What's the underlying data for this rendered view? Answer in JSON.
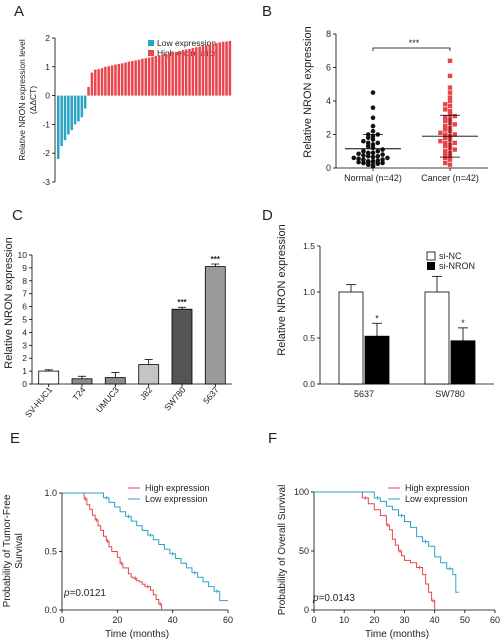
{
  "chart_data": [
    {
      "panel": "A",
      "type": "bar",
      "ylabel_lines": [
        "Relative NRON expression level",
        "(ΔΔCT)"
      ],
      "ylim": [
        -3,
        2
      ],
      "yticks": [
        -3,
        -2,
        -1,
        0,
        1,
        2
      ],
      "legend": [
        {
          "name": "Low expression",
          "color": "#2ba3c4"
        },
        {
          "name": "High expression",
          "color": "#e8464c"
        }
      ],
      "low_values": [
        -2.2,
        -1.75,
        -1.55,
        -1.35,
        -1.2,
        -1.0,
        -0.9,
        -0.75,
        -0.45
      ],
      "high_values": [
        0.3,
        0.8,
        0.9,
        0.92,
        0.95,
        1.0,
        1.02,
        1.05,
        1.08,
        1.1,
        1.12,
        1.15,
        1.18,
        1.2,
        1.22,
        1.25,
        1.28,
        1.3,
        1.32,
        1.35,
        1.38,
        1.4,
        1.42,
        1.45,
        1.48,
        1.5,
        1.52,
        1.55,
        1.58,
        1.6,
        1.62,
        1.65,
        1.68,
        1.7,
        1.72,
        1.75,
        1.78,
        1.8,
        1.82,
        1.85,
        1.87,
        1.88,
        1.9
      ]
    },
    {
      "panel": "B",
      "type": "scatter",
      "ylabel": "Relative NRON expression",
      "ylim": [
        0,
        8
      ],
      "yticks": [
        0,
        2,
        4,
        6,
        8
      ],
      "categories": [
        "Normal (n=42)",
        "Cancer (n=42)"
      ],
      "significance": "***",
      "series": [
        {
          "values": [
            0.1,
            0.15,
            0.2,
            0.25,
            0.3,
            0.3,
            0.35,
            0.4,
            0.4,
            0.45,
            0.5,
            0.5,
            0.55,
            0.6,
            0.6,
            0.65,
            0.7,
            0.7,
            0.75,
            0.8,
            0.85,
            0.9,
            0.9,
            1.0,
            1.0,
            1.1,
            1.2,
            1.3,
            1.4,
            1.5,
            1.5,
            1.6,
            1.7,
            1.8,
            1.9,
            2.0,
            2.0,
            2.2,
            2.5,
            3.0,
            3.6,
            4.5
          ],
          "mean": 1.15,
          "sd": 0.85,
          "color": "#111111"
        },
        {
          "values": [
            0.2,
            0.3,
            0.5,
            0.6,
            0.7,
            0.8,
            0.9,
            1.0,
            1.1,
            1.2,
            1.3,
            1.4,
            1.5,
            1.5,
            1.6,
            1.7,
            1.8,
            1.9,
            2.0,
            2.0,
            2.1,
            2.2,
            2.3,
            2.4,
            2.5,
            2.6,
            2.7,
            2.8,
            2.9,
            3.0,
            3.1,
            3.2,
            3.4,
            3.5,
            3.7,
            3.8,
            4.0,
            4.2,
            4.5,
            4.8,
            5.5,
            6.4
          ],
          "mean": 1.9,
          "sd": 1.25,
          "color": "#e8464c"
        }
      ]
    },
    {
      "panel": "C",
      "type": "bar",
      "ylabel": "Relative NRON expression",
      "ylim": [
        0,
        10
      ],
      "yticks": [
        0,
        1,
        2,
        3,
        4,
        5,
        6,
        7,
        8,
        9,
        10
      ],
      "categories": [
        "SV-HUC1",
        "T24",
        "UMUC3",
        "J82",
        "SW780",
        "5637"
      ],
      "values": [
        1.0,
        0.4,
        0.5,
        1.5,
        5.8,
        9.1
      ],
      "errors": [
        0.1,
        0.2,
        0.4,
        0.4,
        0.15,
        0.2
      ],
      "colors": [
        "#ffffff",
        "#8c8c8c",
        "#8c8c8c",
        "#c4c4c4",
        "#555555",
        "#9a9a9a"
      ],
      "annotations": [
        "",
        "",
        "",
        "",
        "***",
        "***"
      ]
    },
    {
      "panel": "D",
      "type": "bar",
      "ylabel": "Relative NRON expression",
      "ylim": [
        0,
        1.5
      ],
      "yticks": [
        0.0,
        0.5,
        1.0,
        1.5
      ],
      "categories": [
        "5637",
        "SW780"
      ],
      "legend": [
        {
          "name": "si-NC",
          "color": "#ffffff"
        },
        {
          "name": "si-NRON",
          "color": "#000000"
        }
      ],
      "series": [
        {
          "values": [
            1.0,
            1.0
          ],
          "errors": [
            0.08,
            0.17
          ],
          "color": "#ffffff"
        },
        {
          "values": [
            0.52,
            0.47
          ],
          "errors": [
            0.14,
            0.14
          ],
          "color": "#000000"
        }
      ],
      "annotations": [
        "*",
        "*"
      ]
    },
    {
      "panel": "E",
      "type": "line",
      "ylabel_lines": [
        "Probability of Tumor-Free",
        "Survival"
      ],
      "xlabel": "Time (months)",
      "xlim": [
        0,
        60
      ],
      "ylim": [
        0,
        1.0
      ],
      "xticks": [
        0,
        20,
        40,
        60
      ],
      "yticks": [
        0.0,
        0.5,
        1.0
      ],
      "ytick_labels": [
        "0.0",
        "0.5",
        "1.0"
      ],
      "pvalue_prefix": "p",
      "pvalue_value": "=0.0121",
      "series": [
        {
          "name": "High expression",
          "color": "#e8464c",
          "x": [
            0,
            6,
            8,
            9,
            10,
            11,
            12,
            13,
            14,
            15,
            16,
            17,
            18,
            20,
            21,
            22,
            24,
            25,
            26,
            27,
            28,
            29,
            30,
            32,
            33,
            34,
            35,
            36
          ],
          "y": [
            1.0,
            1.0,
            0.95,
            0.9,
            0.86,
            0.81,
            0.77,
            0.72,
            0.68,
            0.63,
            0.59,
            0.54,
            0.5,
            0.45,
            0.4,
            0.36,
            0.31,
            0.28,
            0.27,
            0.25,
            0.24,
            0.22,
            0.2,
            0.17,
            0.13,
            0.09,
            0.05,
            0.0
          ]
        },
        {
          "name": "Low expression",
          "color": "#2ba3c4",
          "x": [
            0,
            14,
            15,
            17,
            19,
            21,
            23,
            25,
            27,
            29,
            31,
            33,
            35,
            37,
            39,
            41,
            43,
            45,
            47,
            49,
            51,
            53,
            55,
            57,
            60
          ],
          "y": [
            1.0,
            1.0,
            0.96,
            0.92,
            0.88,
            0.84,
            0.8,
            0.76,
            0.72,
            0.68,
            0.64,
            0.6,
            0.56,
            0.52,
            0.48,
            0.44,
            0.4,
            0.36,
            0.32,
            0.28,
            0.24,
            0.2,
            0.16,
            0.08,
            0.08
          ]
        }
      ]
    },
    {
      "panel": "F",
      "type": "line",
      "ylabel": "Probability of Overall Survival",
      "xlabel": "Time (months)",
      "xlim": [
        0,
        60
      ],
      "ylim": [
        0,
        100
      ],
      "xticks": [
        0,
        10,
        20,
        30,
        40,
        50,
        60
      ],
      "yticks": [
        0,
        50,
        100
      ],
      "pvalue_prefix": "p",
      "pvalue_value": "=0.0143",
      "series": [
        {
          "name": "High expression",
          "color": "#e8464c",
          "x": [
            0,
            14,
            16,
            18,
            20,
            22,
            24,
            25,
            26,
            27,
            28,
            29,
            30,
            32,
            34,
            36,
            37,
            38,
            39,
            40
          ],
          "y": [
            100,
            100,
            95,
            90,
            85,
            80,
            72,
            68,
            60,
            55,
            50,
            46,
            42,
            40,
            36,
            30,
            22,
            15,
            8,
            0
          ]
        },
        {
          "name": "Low expression",
          "color": "#2ba3c4",
          "x": [
            0,
            18,
            20,
            22,
            24,
            26,
            28,
            30,
            32,
            34,
            36,
            38,
            40,
            42,
            44,
            46,
            47,
            48
          ],
          "y": [
            100,
            100,
            95,
            92,
            88,
            85,
            80,
            75,
            70,
            62,
            58,
            54,
            45,
            40,
            35,
            30,
            15,
            15
          ]
        }
      ]
    }
  ]
}
